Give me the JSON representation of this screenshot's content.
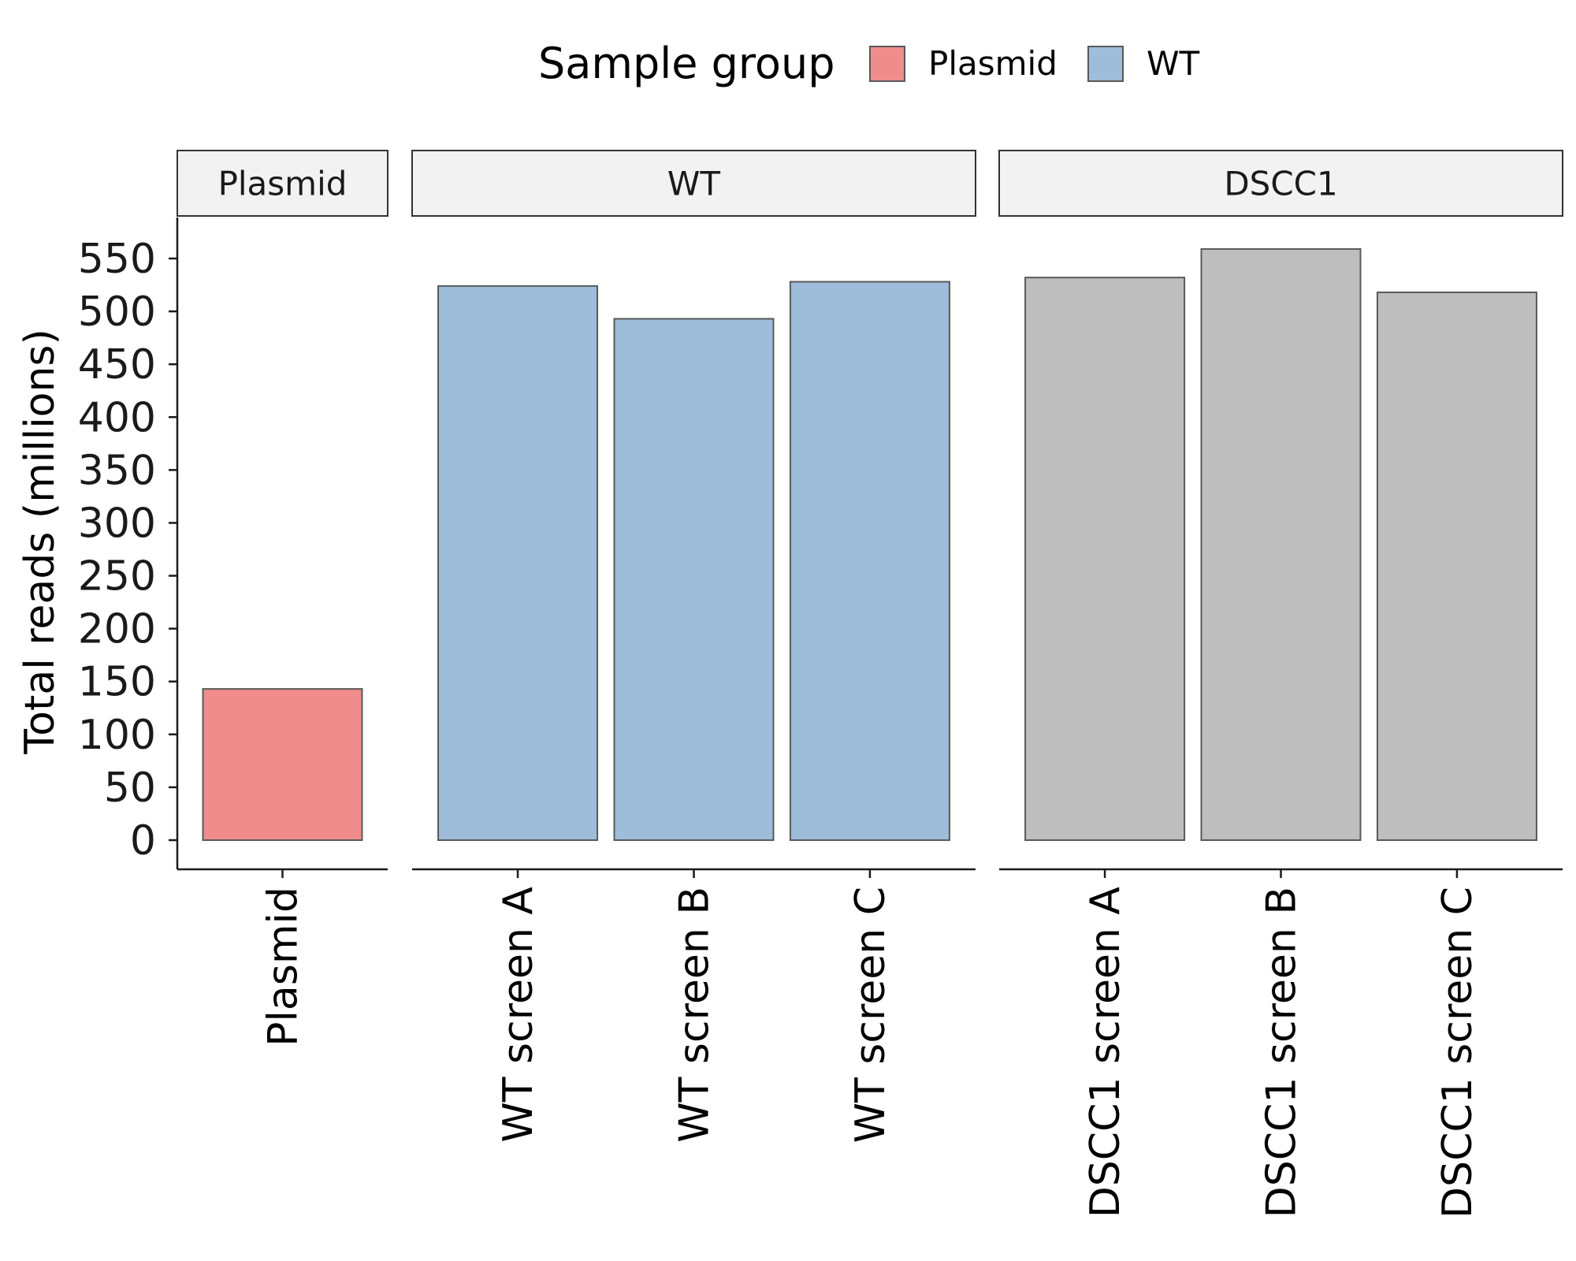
{
  "chart_data": {
    "type": "bar",
    "ylabel": "Total reads (millions)",
    "xlabel": "",
    "ylim": [
      0,
      580
    ],
    "yticks": [
      0,
      50,
      100,
      150,
      200,
      250,
      300,
      350,
      400,
      450,
      500,
      550
    ],
    "legend": {
      "title": "Sample group",
      "placement": "top",
      "entries": [
        {
          "name": "Plasmid",
          "color": "#F08C8C"
        },
        {
          "name": "WT",
          "color": "#9DBDDA"
        }
      ]
    },
    "colors": {
      "Plasmid": "#F08C8C",
      "WT": "#9DBDDA",
      "DSCC1": "#BEBEBE",
      "bar_border": "#595959",
      "strip_fill": "#F2F2F2"
    },
    "facets": [
      {
        "name": "Plasmid",
        "group": "Plasmid",
        "categories": [
          "Plasmid"
        ],
        "values": [
          143
        ]
      },
      {
        "name": "WT",
        "group": "WT",
        "categories": [
          "WT screen A",
          "WT screen B",
          "WT screen C"
        ],
        "values": [
          524,
          493,
          528
        ]
      },
      {
        "name": "DSCC1",
        "group": "DSCC1",
        "categories": [
          "DSCC1 screen A",
          "DSCC1 screen B",
          "DSCC1 screen C"
        ],
        "values": [
          532,
          559,
          518
        ]
      }
    ]
  }
}
